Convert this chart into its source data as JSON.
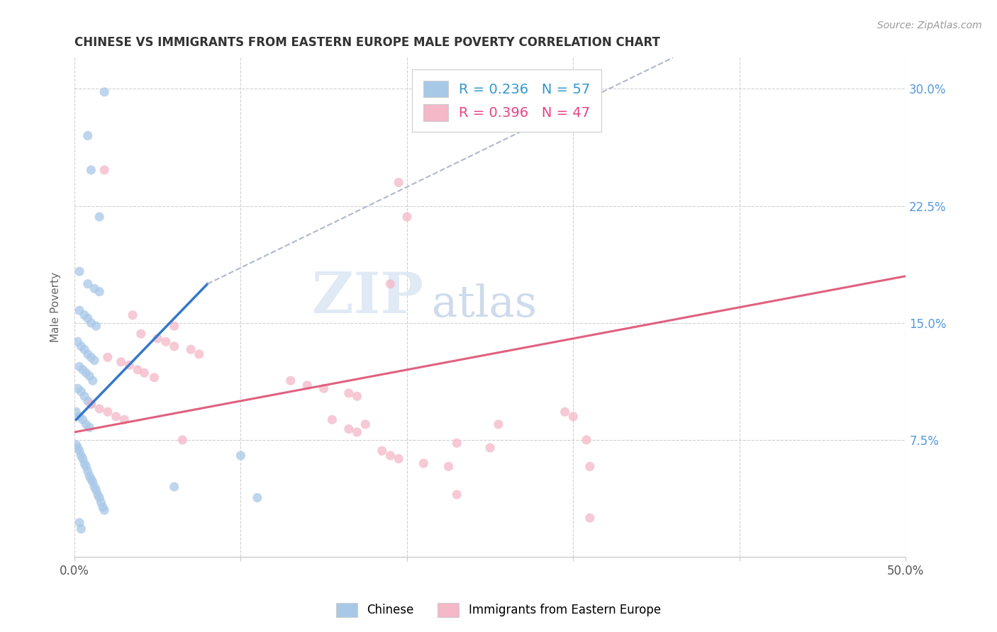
{
  "title": "CHINESE VS IMMIGRANTS FROM EASTERN EUROPE MALE POVERTY CORRELATION CHART",
  "source": "Source: ZipAtlas.com",
  "ylabel": "Male Poverty",
  "xlim": [
    0.0,
    0.5
  ],
  "ylim": [
    0.0,
    0.32
  ],
  "yticks_right": [
    0.075,
    0.15,
    0.225,
    0.3
  ],
  "ytick_labels_right": [
    "7.5%",
    "15.0%",
    "22.5%",
    "30.0%"
  ],
  "grid_color": "#d0d0d0",
  "background_color": "#ffffff",
  "watermark_zip": "ZIP",
  "watermark_atlas": "atlas",
  "legend_R1": "R = 0.236",
  "legend_N1": "N = 57",
  "legend_R2": "R = 0.396",
  "legend_N2": "N = 47",
  "chinese_color": "#a8c8e8",
  "eastern_europe_color": "#f4b8c8",
  "chinese_line_color": "#3377cc",
  "eastern_europe_line_color": "#e06080",
  "dashed_line_color": "#b0b8d0",
  "chinese_scatter": [
    [
      0.018,
      0.298
    ],
    [
      0.008,
      0.27
    ],
    [
      0.01,
      0.248
    ],
    [
      0.015,
      0.218
    ],
    [
      0.003,
      0.183
    ],
    [
      0.008,
      0.175
    ],
    [
      0.012,
      0.172
    ],
    [
      0.015,
      0.17
    ],
    [
      0.003,
      0.158
    ],
    [
      0.006,
      0.155
    ],
    [
      0.008,
      0.153
    ],
    [
      0.01,
      0.15
    ],
    [
      0.013,
      0.148
    ],
    [
      0.002,
      0.138
    ],
    [
      0.004,
      0.135
    ],
    [
      0.006,
      0.133
    ],
    [
      0.008,
      0.13
    ],
    [
      0.01,
      0.128
    ],
    [
      0.012,
      0.126
    ],
    [
      0.003,
      0.122
    ],
    [
      0.005,
      0.12
    ],
    [
      0.007,
      0.118
    ],
    [
      0.009,
      0.116
    ],
    [
      0.011,
      0.113
    ],
    [
      0.002,
      0.108
    ],
    [
      0.004,
      0.106
    ],
    [
      0.006,
      0.103
    ],
    [
      0.008,
      0.1
    ],
    [
      0.01,
      0.098
    ],
    [
      0.001,
      0.093
    ],
    [
      0.003,
      0.09
    ],
    [
      0.005,
      0.088
    ],
    [
      0.007,
      0.085
    ],
    [
      0.009,
      0.083
    ],
    [
      0.001,
      0.072
    ],
    [
      0.002,
      0.07
    ],
    [
      0.003,
      0.068
    ],
    [
      0.004,
      0.065
    ],
    [
      0.005,
      0.063
    ],
    [
      0.006,
      0.06
    ],
    [
      0.007,
      0.058
    ],
    [
      0.008,
      0.055
    ],
    [
      0.009,
      0.052
    ],
    [
      0.01,
      0.05
    ],
    [
      0.011,
      0.048
    ],
    [
      0.012,
      0.045
    ],
    [
      0.013,
      0.043
    ],
    [
      0.014,
      0.04
    ],
    [
      0.015,
      0.038
    ],
    [
      0.016,
      0.035
    ],
    [
      0.017,
      0.032
    ],
    [
      0.018,
      0.03
    ],
    [
      0.06,
      0.045
    ],
    [
      0.11,
      0.038
    ],
    [
      0.003,
      0.022
    ],
    [
      0.004,
      0.018
    ],
    [
      0.1,
      0.065
    ]
  ],
  "eastern_europe_scatter": [
    [
      0.018,
      0.248
    ],
    [
      0.195,
      0.24
    ],
    [
      0.2,
      0.218
    ],
    [
      0.19,
      0.175
    ],
    [
      0.035,
      0.155
    ],
    [
      0.06,
      0.148
    ],
    [
      0.04,
      0.143
    ],
    [
      0.05,
      0.14
    ],
    [
      0.055,
      0.138
    ],
    [
      0.06,
      0.135
    ],
    [
      0.07,
      0.133
    ],
    [
      0.075,
      0.13
    ],
    [
      0.02,
      0.128
    ],
    [
      0.028,
      0.125
    ],
    [
      0.033,
      0.123
    ],
    [
      0.038,
      0.12
    ],
    [
      0.042,
      0.118
    ],
    [
      0.048,
      0.115
    ],
    [
      0.13,
      0.113
    ],
    [
      0.14,
      0.11
    ],
    [
      0.15,
      0.108
    ],
    [
      0.165,
      0.105
    ],
    [
      0.17,
      0.103
    ],
    [
      0.01,
      0.098
    ],
    [
      0.015,
      0.095
    ],
    [
      0.02,
      0.093
    ],
    [
      0.025,
      0.09
    ],
    [
      0.03,
      0.088
    ],
    [
      0.065,
      0.075
    ],
    [
      0.23,
      0.073
    ],
    [
      0.25,
      0.07
    ],
    [
      0.185,
      0.068
    ],
    [
      0.19,
      0.065
    ],
    [
      0.195,
      0.063
    ],
    [
      0.21,
      0.06
    ],
    [
      0.225,
      0.058
    ],
    [
      0.308,
      0.075
    ],
    [
      0.31,
      0.058
    ],
    [
      0.23,
      0.04
    ],
    [
      0.31,
      0.025
    ],
    [
      0.165,
      0.082
    ],
    [
      0.17,
      0.08
    ],
    [
      0.295,
      0.093
    ],
    [
      0.3,
      0.09
    ],
    [
      0.155,
      0.088
    ],
    [
      0.175,
      0.085
    ],
    [
      0.255,
      0.085
    ]
  ],
  "chinese_trendline_solid": [
    [
      0.001,
      0.088
    ],
    [
      0.08,
      0.175
    ]
  ],
  "chinese_trendline_dashed": [
    [
      0.08,
      0.175
    ],
    [
      0.36,
      0.32
    ]
  ],
  "eastern_europe_trendline": [
    [
      0.0,
      0.08
    ],
    [
      0.5,
      0.18
    ]
  ]
}
